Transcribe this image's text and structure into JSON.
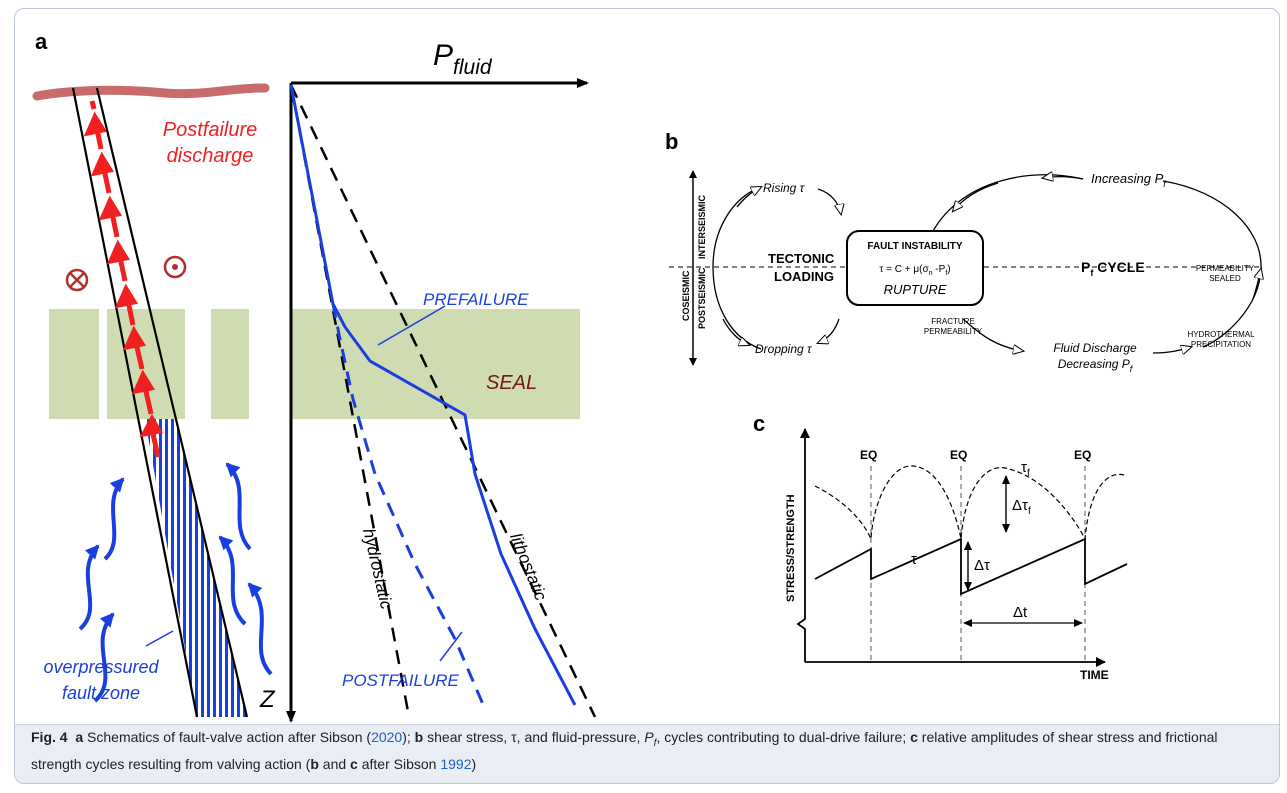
{
  "figure": {
    "panel_a_label": "a",
    "panel_b_label": "b",
    "panel_c_label": "c",
    "colors": {
      "blue": "#1a3fe0",
      "red": "#f02020",
      "seal_green": "#cfdcb2",
      "surface_red": "#c96b6b",
      "frame": "#b9c7d6"
    },
    "panel_a": {
      "axis_label_main": "P",
      "axis_label_sub": "fluid",
      "z_label": "Z",
      "postfailure_discharge_line1": "Postfailure",
      "postfailure_discharge_line2": "discharge",
      "seal_label": "SEAL",
      "prefailure_label": "PREFAILURE",
      "postfailure_label": "POSTFAILURE",
      "hydrostatic_label": "hydrostatic",
      "lithostatic_label": "lithostatic",
      "overpressured_line1": "overpressured",
      "overpressured_line2": "fault zone",
      "into_page_icon": "circle-cross-icon",
      "out_of_page_icon": "circle-dot-icon"
    },
    "panel_b": {
      "interseismic": "INTERSEISMIC",
      "coseismic": "COSEISMIC",
      "postseismic": "POSTSEISMIC",
      "rising_tau": "Rising τ",
      "dropping_tau": "Dropping τ",
      "tectonic": "TECTONIC",
      "loading": "LOADING",
      "fault_instability": "FAULT INSTABILITY",
      "equation": "τ = C + μ(σ",
      "equation_sub_n": "n",
      "equation_mid": " -P",
      "equation_sub_f": "f",
      "equation_end": ")",
      "rupture": "RUPTURE",
      "pf_cycle_main": "P",
      "pf_cycle_sub": "f",
      "pf_cycle_rest": " CYCLE",
      "increasing_pf_main": "Increasing P",
      "increasing_pf_sub": "f",
      "permeability": "PERMEABILITY",
      "sealed": "SEALED",
      "fracture": "FRACTURE",
      "fracture_permeability": "PERMEABILITY",
      "fluid_discharge": "Fluid Discharge",
      "decreasing_pf_main": "Decreasing P",
      "decreasing_pf_sub": "f",
      "hydrothermal": "HYDROTHERMAL",
      "precipitation": "PRECIPITATION"
    },
    "panel_c": {
      "eq1": "EQ",
      "eq2": "EQ",
      "eq3": "EQ",
      "tau_f_main": "τ",
      "tau_f_sub": "f",
      "delta_tau_f_main": "Δτ",
      "delta_tau_f_sub": "f",
      "tau": "τ",
      "delta_tau": "Δτ",
      "delta_t": "Δt",
      "ylabel": "STRESS/STRENGTH",
      "xlabel": "TIME"
    }
  },
  "caption": {
    "fig_label": "Fig. 4",
    "a": "a",
    "t1": " Schematics of fault-valve action after Sibson (",
    "ref1": "2020",
    "t2": "); ",
    "b": "b",
    "t3": " shear stress, τ, and fluid-pressure, ",
    "pf_main": "P",
    "pf_sub": "f",
    "t4": ", cycles contributing to dual-drive failure; ",
    "c": "c",
    "t5": " relative amplitudes of shear stress and frictional strength cycles resulting from valving action (",
    "b2": "b",
    "t6": " and ",
    "c2": "c",
    "t7": " after Sibson ",
    "ref2": "1992",
    "t8": ")"
  }
}
